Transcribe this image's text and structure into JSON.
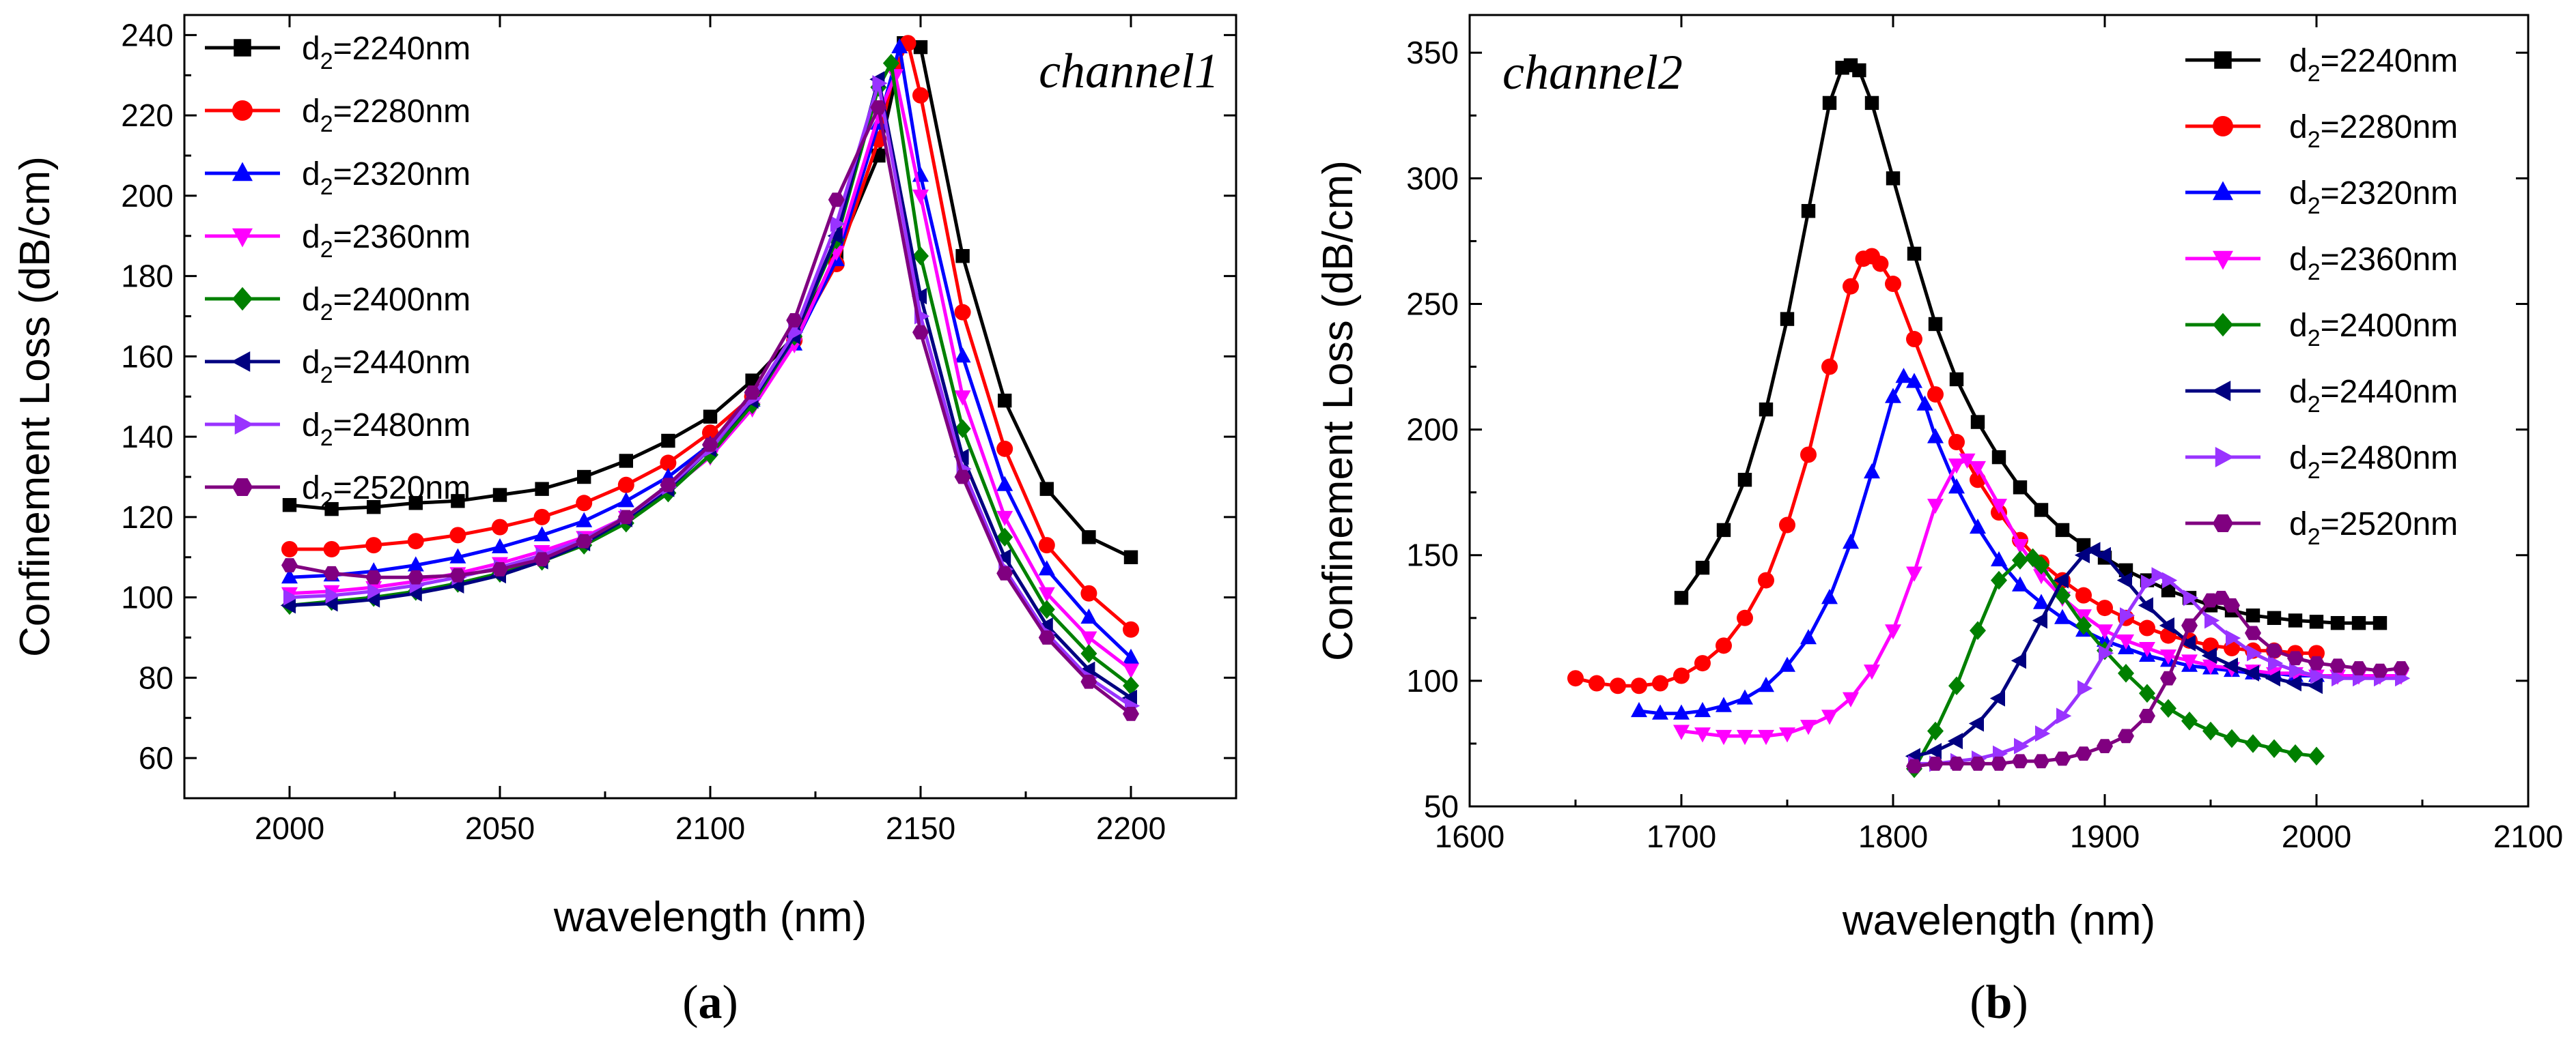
{
  "chart_data": [
    {
      "id": "a",
      "type": "line",
      "panel_label": "(a)",
      "panel_letter": "a",
      "annotation": "channel1",
      "xlabel": "wavelength (nm)",
      "ylabel": "Confinement  Loss (dB/cm)",
      "xlim": [
        1975,
        2225
      ],
      "ylim": [
        50,
        245
      ],
      "xticks": [
        2000,
        2050,
        2100,
        2150,
        2200
      ],
      "yticks": [
        60,
        80,
        100,
        120,
        140,
        160,
        180,
        200,
        220,
        240
      ],
      "legend_position": "top-left",
      "series": [
        {
          "name": "d2=2240nm",
          "label_base": "d",
          "label_sub": "2",
          "label_rest": "=2240nm",
          "color": "#000000",
          "marker": "square",
          "x": [
            2000,
            2010,
            2020,
            2030,
            2040,
            2050,
            2060,
            2070,
            2080,
            2090,
            2100,
            2110,
            2120,
            2130,
            2140,
            2146,
            2150,
            2160,
            2170,
            2180,
            2190,
            2200
          ],
          "y": [
            123,
            122,
            122.5,
            123.5,
            124,
            125.5,
            127,
            130,
            134,
            139,
            145,
            154,
            165,
            185,
            210,
            238,
            237,
            185,
            149,
            127,
            115,
            110
          ]
        },
        {
          "name": "d2=2280nm",
          "label_base": "d",
          "label_sub": "2",
          "label_rest": "=2280nm",
          "color": "#ff0000",
          "marker": "circle",
          "x": [
            2000,
            2010,
            2020,
            2030,
            2040,
            2050,
            2060,
            2070,
            2080,
            2090,
            2100,
            2110,
            2120,
            2130,
            2140,
            2144,
            2147,
            2150,
            2160,
            2170,
            2180,
            2190,
            2200
          ],
          "y": [
            112,
            112,
            113,
            114,
            115.5,
            117.5,
            120,
            123.5,
            128,
            133.5,
            141,
            150,
            164,
            183,
            214,
            232,
            238,
            225,
            171,
            137,
            113,
            101,
            92
          ]
        },
        {
          "name": "d2=2320nm",
          "label_base": "d",
          "label_sub": "2",
          "label_rest": "=2320nm",
          "color": "#0000ff",
          "marker": "triangle-up",
          "x": [
            2000,
            2010,
            2020,
            2030,
            2040,
            2050,
            2060,
            2070,
            2080,
            2090,
            2100,
            2110,
            2120,
            2130,
            2140,
            2145,
            2150,
            2160,
            2170,
            2180,
            2190,
            2200
          ],
          "y": [
            105,
            105.5,
            106.5,
            108,
            110,
            112.5,
            115.5,
            119,
            124,
            130,
            138,
            149,
            163,
            184,
            218,
            237,
            205,
            160,
            128,
            107,
            95,
            85
          ]
        },
        {
          "name": "d2=2360nm",
          "label_base": "d",
          "label_sub": "2",
          "label_rest": "=2360nm",
          "color": "#ff00ff",
          "marker": "triangle-down",
          "x": [
            2000,
            2010,
            2020,
            2030,
            2040,
            2050,
            2060,
            2070,
            2080,
            2090,
            2100,
            2110,
            2120,
            2130,
            2140,
            2144,
            2150,
            2160,
            2170,
            2180,
            2190,
            2200
          ],
          "y": [
            101,
            101.5,
            102.5,
            104,
            106,
            108.5,
            111.5,
            115,
            120,
            126.5,
            135,
            147,
            163,
            186,
            220,
            230,
            200,
            150,
            120,
            101,
            90,
            82
          ]
        },
        {
          "name": "d2=2400nm",
          "label_base": "d",
          "label_sub": "2",
          "label_rest": "=2400nm",
          "color": "#008000",
          "marker": "diamond",
          "x": [
            2000,
            2010,
            2020,
            2030,
            2040,
            2050,
            2060,
            2070,
            2080,
            2090,
            2100,
            2110,
            2120,
            2130,
            2140,
            2143,
            2150,
            2160,
            2170,
            2180,
            2190,
            2200
          ],
          "y": [
            98,
            99,
            100,
            101.5,
            103.5,
            106,
            109,
            113,
            118.5,
            126,
            135.5,
            148,
            165,
            189,
            227,
            233,
            185,
            142,
            115,
            97,
            86,
            78
          ]
        },
        {
          "name": "d2=2440nm",
          "label_base": "d",
          "label_sub": "2",
          "label_rest": "=2440nm",
          "color": "#000080",
          "marker": "triangle-left",
          "x": [
            2000,
            2010,
            2020,
            2030,
            2040,
            2050,
            2060,
            2070,
            2080,
            2090,
            2100,
            2110,
            2120,
            2130,
            2140,
            2150,
            2160,
            2170,
            2180,
            2190,
            2200
          ],
          "y": [
            98,
            98.5,
            99.5,
            101,
            103,
            105.5,
            109,
            113.5,
            119.5,
            127,
            137,
            149,
            165,
            190,
            229,
            175,
            135,
            110,
            93,
            82,
            75
          ]
        },
        {
          "name": "d2=2480nm",
          "label_base": "d",
          "label_sub": "2",
          "label_rest": "=2480nm",
          "color": "#9933ff",
          "marker": "triangle-right",
          "x": [
            2000,
            2010,
            2020,
            2030,
            2040,
            2050,
            2060,
            2070,
            2080,
            2090,
            2100,
            2110,
            2120,
            2130,
            2140,
            2150,
            2160,
            2170,
            2180,
            2190,
            2200
          ],
          "y": [
            100,
            100.5,
            101.5,
            103,
            105,
            107.5,
            110.5,
            114.5,
            120,
            127.5,
            137,
            149.5,
            166,
            193,
            228,
            170,
            132,
            107,
            91,
            80,
            73
          ]
        },
        {
          "name": "d2=2520nm",
          "label_base": "d",
          "label_sub": "2",
          "label_rest": "=2520nm",
          "color": "#800080",
          "marker": "hexagon",
          "x": [
            2000,
            2010,
            2020,
            2030,
            2040,
            2050,
            2060,
            2070,
            2080,
            2090,
            2100,
            2110,
            2120,
            2130,
            2140,
            2150,
            2160,
            2170,
            2180,
            2190,
            2200
          ],
          "y": [
            108,
            106,
            105,
            105,
            105.5,
            107,
            109.5,
            114,
            120,
            128,
            138,
            151,
            169,
            199,
            222,
            166,
            130,
            106,
            90,
            79,
            71
          ]
        }
      ]
    },
    {
      "id": "b",
      "type": "line",
      "panel_label": "(b)",
      "panel_letter": "b",
      "annotation": "channel2",
      "xlabel": "wavelength (nm)",
      "ylabel": "Confinement  Loss (dB/cm)",
      "xlim": [
        1600,
        2100
      ],
      "ylim": [
        50,
        365
      ],
      "xticks": [
        1600,
        1700,
        1800,
        1900,
        2000,
        2100
      ],
      "yticks": [
        50,
        100,
        150,
        200,
        250,
        300,
        350
      ],
      "legend_position": "top-right",
      "series": [
        {
          "name": "d2=2240nm",
          "label_base": "d",
          "label_sub": "2",
          "label_rest": "=2240nm",
          "color": "#000000",
          "marker": "square",
          "x": [
            1700,
            1710,
            1720,
            1730,
            1740,
            1750,
            1760,
            1770,
            1776,
            1780,
            1784,
            1790,
            1800,
            1810,
            1820,
            1830,
            1840,
            1850,
            1860,
            1870,
            1880,
            1890,
            1900,
            1910,
            1920,
            1930,
            1940,
            1950,
            1960,
            1970,
            1980,
            1990,
            2000,
            2010,
            2020,
            2030
          ],
          "y": [
            133,
            145,
            160,
            180,
            208,
            244,
            287,
            330,
            344,
            345,
            343,
            330,
            300,
            270,
            242,
            220,
            203,
            189,
            177,
            168,
            160,
            154,
            149,
            144,
            140,
            136,
            133,
            130,
            128,
            126,
            125,
            124,
            123.5,
            123,
            123,
            123
          ]
        },
        {
          "name": "d2=2280nm",
          "label_base": "d",
          "label_sub": "2",
          "label_rest": "=2280nm",
          "color": "#ff0000",
          "marker": "circle",
          "x": [
            1650,
            1660,
            1670,
            1680,
            1690,
            1700,
            1710,
            1720,
            1730,
            1740,
            1750,
            1760,
            1770,
            1780,
            1786,
            1790,
            1794,
            1800,
            1810,
            1820,
            1830,
            1840,
            1850,
            1860,
            1870,
            1880,
            1890,
            1900,
            1910,
            1920,
            1930,
            1940,
            1950,
            1960,
            1970,
            1980,
            1990,
            2000
          ],
          "y": [
            101,
            99,
            98,
            98,
            99,
            102,
            107,
            114,
            125,
            140,
            162,
            190,
            225,
            257,
            268,
            269,
            266,
            258,
            236,
            214,
            195,
            180,
            167,
            156,
            147,
            140,
            134,
            129,
            125,
            121,
            118,
            116,
            114,
            113,
            112,
            112,
            111,
            111
          ]
        },
        {
          "name": "d2=2320nm",
          "label_base": "d",
          "label_sub": "2",
          "label_rest": "=2320nm",
          "color": "#0000ff",
          "marker": "triangle-up",
          "x": [
            1680,
            1690,
            1700,
            1710,
            1720,
            1730,
            1740,
            1750,
            1760,
            1770,
            1780,
            1790,
            1800,
            1805,
            1810,
            1815,
            1820,
            1830,
            1840,
            1850,
            1860,
            1870,
            1880,
            1890,
            1900,
            1910,
            1920,
            1930,
            1940,
            1950,
            1960,
            1970,
            1980,
            1990,
            2000
          ],
          "y": [
            88,
            87,
            87,
            88,
            90,
            93,
            98,
            106,
            117,
            133,
            155,
            183,
            213,
            221,
            219,
            210,
            197,
            177,
            161,
            148,
            138,
            131,
            125,
            120,
            116,
            113,
            110,
            108,
            106,
            105,
            104,
            103,
            103,
            102,
            102
          ]
        },
        {
          "name": "d2=2360nm",
          "label_base": "d",
          "label_sub": "2",
          "label_rest": "=2360nm",
          "color": "#ff00ff",
          "marker": "triangle-down",
          "x": [
            1700,
            1710,
            1720,
            1730,
            1740,
            1750,
            1760,
            1770,
            1780,
            1790,
            1800,
            1810,
            1820,
            1830,
            1835,
            1840,
            1850,
            1860,
            1870,
            1880,
            1890,
            1900,
            1910,
            1920,
            1930,
            1940,
            1950,
            1960,
            1970,
            1980,
            1990,
            2000,
            2010,
            2020,
            2030,
            2040
          ],
          "y": [
            80,
            79,
            78,
            78,
            78,
            79,
            82,
            86,
            93,
            104,
            120,
            143,
            170,
            186,
            188,
            185,
            170,
            154,
            142,
            133,
            126,
            120,
            116,
            113,
            110,
            108,
            106,
            105,
            104,
            103,
            103,
            102,
            102,
            102,
            102,
            102
          ]
        },
        {
          "name": "d2=2400nm",
          "label_base": "d",
          "label_sub": "2",
          "label_rest": "=2400nm",
          "color": "#008000",
          "marker": "diamond",
          "x": [
            1810,
            1820,
            1830,
            1840,
            1850,
            1860,
            1866,
            1870,
            1880,
            1890,
            1900,
            1910,
            1920,
            1930,
            1940,
            1950,
            1960,
            1970,
            1980,
            1990,
            2000
          ],
          "y": [
            65,
            80,
            98,
            120,
            140,
            148,
            149,
            146,
            134,
            122,
            112,
            103,
            95,
            89,
            84,
            80,
            77,
            75,
            73,
            71,
            70
          ]
        },
        {
          "name": "d2=2440nm",
          "label_base": "d",
          "label_sub": "2",
          "label_rest": "=2440nm",
          "color": "#000080",
          "marker": "triangle-left",
          "x": [
            1810,
            1820,
            1830,
            1840,
            1850,
            1860,
            1870,
            1880,
            1890,
            1895,
            1900,
            1910,
            1920,
            1930,
            1940,
            1950,
            1960,
            1970,
            1980,
            1990,
            2000
          ],
          "y": [
            70,
            72,
            76,
            83,
            93,
            108,
            124,
            140,
            150,
            152,
            150,
            140,
            130,
            122,
            115,
            110,
            106,
            103,
            101,
            99,
            98
          ]
        },
        {
          "name": "d2=2480nm",
          "label_base": "d",
          "label_sub": "2",
          "label_rest": "=2480nm",
          "color": "#9933ff",
          "marker": "triangle-right",
          "x": [
            1810,
            1820,
            1830,
            1840,
            1850,
            1860,
            1870,
            1880,
            1890,
            1900,
            1910,
            1920,
            1925,
            1930,
            1940,
            1950,
            1960,
            1970,
            1980,
            1990,
            2000,
            2010,
            2020,
            2030,
            2040
          ],
          "y": [
            67,
            67,
            68,
            69,
            71,
            74,
            79,
            86,
            97,
            111,
            126,
            139,
            142,
            140,
            133,
            124,
            117,
            111,
            107,
            104,
            102,
            101,
            101,
            101,
            101
          ]
        },
        {
          "name": "d2=2520nm",
          "label_base": "d",
          "label_sub": "2",
          "label_rest": "=2520nm",
          "color": "#800080",
          "marker": "hexagon",
          "x": [
            1810,
            1820,
            1830,
            1840,
            1850,
            1860,
            1870,
            1880,
            1890,
            1900,
            1910,
            1920,
            1930,
            1940,
            1950,
            1955,
            1960,
            1970,
            1980,
            1990,
            2000,
            2010,
            2020,
            2030,
            2040
          ],
          "y": [
            66,
            67,
            67,
            67,
            67,
            68,
            68,
            69,
            71,
            74,
            78,
            86,
            101,
            122,
            132,
            133,
            130,
            119,
            112,
            109,
            107,
            106,
            105,
            104,
            105
          ]
        }
      ]
    }
  ]
}
